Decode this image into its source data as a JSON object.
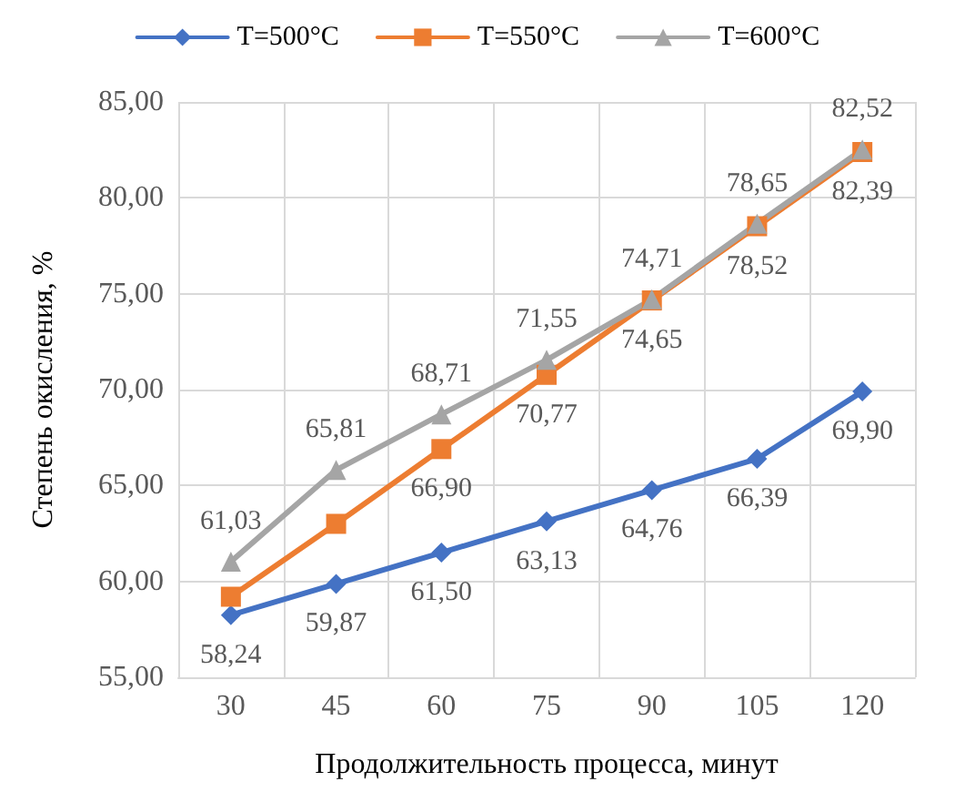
{
  "chart_data": {
    "type": "line",
    "xlabel": "Продолжительность процесса, минут",
    "ylabel": "Степень окисления, %",
    "categories": [
      "30",
      "45",
      "60",
      "75",
      "90",
      "105",
      "120"
    ],
    "series": [
      {
        "name": "T=500°C",
        "color": "#4472c4",
        "marker": "diamond",
        "values": [
          58.24,
          59.87,
          61.5,
          63.13,
          64.76,
          66.39,
          69.9
        ],
        "value_labels": [
          "58,24",
          "59,87",
          "61,50",
          "63,13",
          "64,76",
          "66,39",
          "69,90"
        ]
      },
      {
        "name": "T=550°C",
        "color": "#ed7d31",
        "marker": "square",
        "values": [
          59.2,
          63.0,
          66.9,
          70.77,
          74.65,
          78.52,
          82.39
        ],
        "value_labels": [
          null,
          null,
          "66,90",
          "70,77",
          "74,65",
          "78,52",
          "82,39"
        ]
      },
      {
        "name": "T=600°C",
        "color": "#a5a5a5",
        "marker": "triangle",
        "values": [
          61.03,
          65.81,
          68.71,
          71.55,
          74.71,
          78.65,
          82.52
        ],
        "value_labels": [
          "61,03",
          "65,81",
          "68,71",
          "71,55",
          "74,71",
          "78,65",
          "82,52"
        ]
      }
    ],
    "ylim": [
      55,
      85
    ],
    "yticks": [
      {
        "value": 55,
        "label": "55,00"
      },
      {
        "value": 60,
        "label": "60,00"
      },
      {
        "value": 65,
        "label": "65,00"
      },
      {
        "value": 70,
        "label": "70,00"
      },
      {
        "value": 75,
        "label": "75,00"
      },
      {
        "value": 80,
        "label": "80,00"
      },
      {
        "value": 85,
        "label": "85,00"
      }
    ],
    "grid": true,
    "legend": "top",
    "line_style": "solid"
  }
}
